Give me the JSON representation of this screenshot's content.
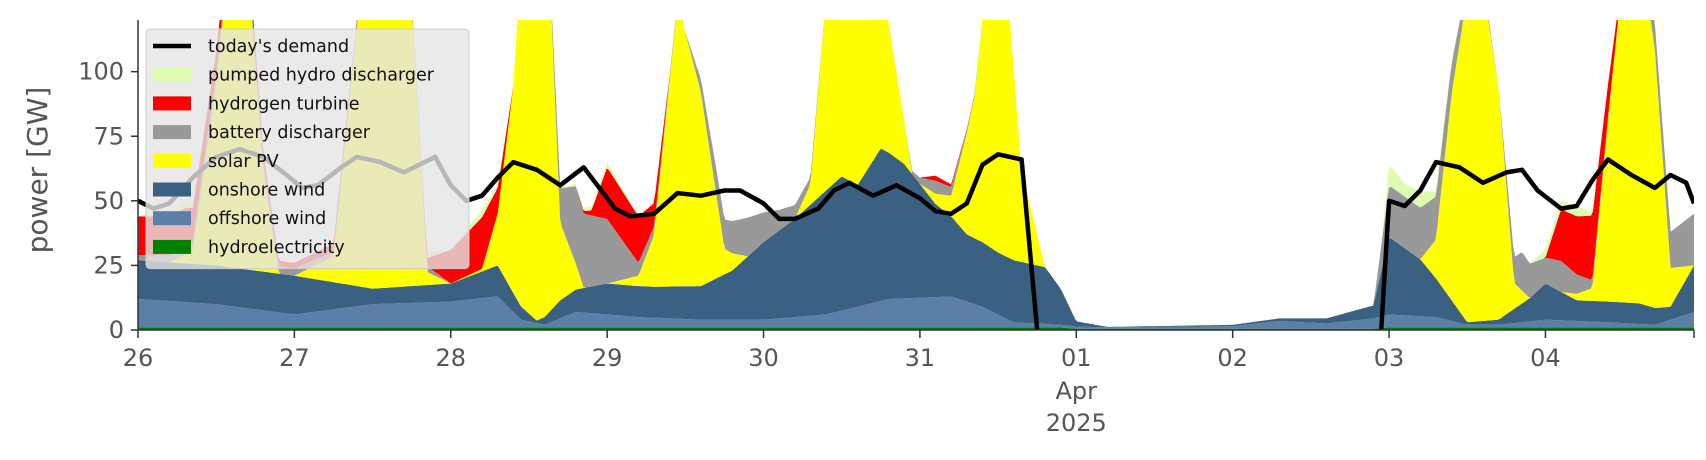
{
  "chart_data": {
    "type": "area",
    "ylabel": "power [GW]",
    "ylim": [
      0,
      120
    ],
    "yticks": [
      0,
      25,
      50,
      75,
      100
    ],
    "xlim": [
      0,
      9.95
    ],
    "xticks": [
      {
        "x": 0,
        "label": "26"
      },
      {
        "x": 1,
        "label": "27"
      },
      {
        "x": 2,
        "label": "28"
      },
      {
        "x": 3,
        "label": "29"
      },
      {
        "x": 4,
        "label": "30"
      },
      {
        "x": 5,
        "label": "31"
      },
      {
        "x": 6,
        "label": "01",
        "sub": [
          "Apr",
          "2025"
        ]
      },
      {
        "x": 7,
        "label": "02"
      },
      {
        "x": 8,
        "label": "03"
      },
      {
        "x": 9,
        "label": "04"
      }
    ],
    "legend_position": "top-left",
    "grid": false,
    "x_unit": "days from 26 Mar 2025",
    "stacked_series": [
      {
        "name": "hydroelectricity",
        "color": "#008000",
        "points": [
          [
            0,
            1
          ],
          [
            5.9,
            1
          ],
          [
            6.0,
            0.5
          ],
          [
            7.9,
            0.5
          ],
          [
            8.0,
            1
          ],
          [
            9.95,
            1
          ]
        ]
      },
      {
        "name": "offshore wind",
        "color": "#5b7fa6",
        "points": [
          [
            0,
            11
          ],
          [
            0.5,
            9
          ],
          [
            1.0,
            5
          ],
          [
            1.5,
            9
          ],
          [
            2.0,
            10
          ],
          [
            2.3,
            12
          ],
          [
            2.45,
            3
          ],
          [
            2.6,
            1
          ],
          [
            2.8,
            6
          ],
          [
            3.2,
            4
          ],
          [
            3.6,
            3
          ],
          [
            4.0,
            3
          ],
          [
            4.4,
            5
          ],
          [
            4.8,
            11
          ],
          [
            5.2,
            12
          ],
          [
            5.4,
            8
          ],
          [
            5.6,
            2
          ],
          [
            5.9,
            1
          ],
          [
            6.2,
            0.5
          ],
          [
            7.0,
            1
          ],
          [
            7.3,
            3
          ],
          [
            7.6,
            2
          ],
          [
            7.9,
            4
          ],
          [
            8.0,
            5
          ],
          [
            8.3,
            4
          ],
          [
            8.5,
            1
          ],
          [
            8.7,
            1
          ],
          [
            9.0,
            3
          ],
          [
            9.4,
            2
          ],
          [
            9.7,
            1
          ],
          [
            9.95,
            6
          ]
        ]
      },
      {
        "name": "onshore wind",
        "color": "#3a6082",
        "points": [
          [
            0,
            15
          ],
          [
            0.5,
            15
          ],
          [
            1.0,
            15
          ],
          [
            1.5,
            6
          ],
          [
            2.0,
            7
          ],
          [
            2.3,
            12
          ],
          [
            2.45,
            5
          ],
          [
            2.55,
            1
          ],
          [
            2.7,
            7
          ],
          [
            3.0,
            12
          ],
          [
            3.3,
            12
          ],
          [
            3.6,
            13
          ],
          [
            3.8,
            19
          ],
          [
            4.0,
            30
          ],
          [
            4.2,
            38
          ],
          [
            4.4,
            48
          ],
          [
            4.5,
            52
          ],
          [
            4.6,
            47
          ],
          [
            4.75,
            59
          ],
          [
            4.9,
            52
          ],
          [
            5.0,
            44
          ],
          [
            5.1,
            36
          ],
          [
            5.3,
            26
          ],
          [
            5.5,
            24
          ],
          [
            5.6,
            24
          ],
          [
            5.8,
            22
          ],
          [
            5.9,
            14
          ],
          [
            6.0,
            2
          ],
          [
            6.2,
            0.2
          ],
          [
            7.0,
            0.5
          ],
          [
            7.3,
            1
          ],
          [
            7.6,
            2
          ],
          [
            7.9,
            5
          ],
          [
            8.0,
            30
          ],
          [
            8.2,
            22
          ],
          [
            8.4,
            8
          ],
          [
            8.5,
            1
          ],
          [
            8.7,
            2
          ],
          [
            8.9,
            9
          ],
          [
            9.0,
            14
          ],
          [
            9.2,
            8
          ],
          [
            9.4,
            8
          ],
          [
            9.6,
            8
          ],
          [
            9.8,
            5
          ],
          [
            9.95,
            18
          ]
        ]
      },
      {
        "name": "solar PV",
        "color": "#ffff00",
        "points": [
          [
            0,
            0
          ],
          [
            0.2,
            0
          ],
          [
            0.35,
            5
          ],
          [
            0.5,
            70
          ],
          [
            0.65,
            160
          ],
          [
            0.8,
            40
          ],
          [
            0.9,
            0
          ],
          [
            1.0,
            0
          ],
          [
            1.25,
            10
          ],
          [
            1.4,
            100
          ],
          [
            1.55,
            190
          ],
          [
            1.7,
            160
          ],
          [
            1.85,
            5
          ],
          [
            2.0,
            0
          ],
          [
            2.2,
            1
          ],
          [
            2.3,
            20
          ],
          [
            2.4,
            80
          ],
          [
            2.5,
            190
          ],
          [
            2.6,
            180
          ],
          [
            2.7,
            30
          ],
          [
            2.85,
            0
          ],
          [
            3.0,
            0
          ],
          [
            3.2,
            4
          ],
          [
            3.3,
            20
          ],
          [
            3.45,
            110
          ],
          [
            3.6,
            75
          ],
          [
            3.75,
            10
          ],
          [
            3.9,
            0
          ],
          [
            4.2,
            0
          ],
          [
            4.3,
            8
          ],
          [
            4.4,
            75
          ],
          [
            4.5,
            135
          ],
          [
            4.65,
            130
          ],
          [
            4.8,
            50
          ],
          [
            4.95,
            0
          ],
          [
            5.0,
            0
          ],
          [
            5.2,
            8
          ],
          [
            5.35,
            55
          ],
          [
            5.5,
            150
          ],
          [
            5.65,
            35
          ],
          [
            5.8,
            0
          ],
          [
            6.0,
            0
          ],
          [
            8.2,
            0
          ],
          [
            8.3,
            15
          ],
          [
            8.4,
            80
          ],
          [
            8.55,
            150
          ],
          [
            8.7,
            90
          ],
          [
            8.8,
            10
          ],
          [
            8.9,
            0
          ],
          [
            9.1,
            0
          ],
          [
            9.3,
            5
          ],
          [
            9.4,
            70
          ],
          [
            9.55,
            160
          ],
          [
            9.7,
            100
          ],
          [
            9.8,
            15
          ],
          [
            9.95,
            0
          ]
        ]
      },
      {
        "name": "battery discharger",
        "color": "#999999",
        "points": [
          [
            0,
            2
          ],
          [
            0.3,
            3
          ],
          [
            0.6,
            5
          ],
          [
            0.9,
            3
          ],
          [
            1.2,
            2
          ],
          [
            1.5,
            2
          ],
          [
            1.8,
            3
          ],
          [
            2.0,
            0
          ],
          [
            2.3,
            0
          ],
          [
            2.5,
            0
          ],
          [
            2.65,
            5
          ],
          [
            2.8,
            30
          ],
          [
            3.0,
            25
          ],
          [
            3.2,
            5
          ],
          [
            3.5,
            0
          ],
          [
            3.7,
            10
          ],
          [
            3.9,
            15
          ],
          [
            4.1,
            8
          ],
          [
            4.4,
            0
          ],
          [
            4.7,
            0
          ],
          [
            4.9,
            0
          ],
          [
            5.1,
            5
          ],
          [
            5.4,
            0
          ],
          [
            6.0,
            0
          ],
          [
            7.9,
            0
          ],
          [
            8.0,
            20
          ],
          [
            8.2,
            20
          ],
          [
            8.35,
            15
          ],
          [
            8.5,
            5
          ],
          [
            8.7,
            0
          ],
          [
            8.85,
            15
          ],
          [
            9.0,
            10
          ],
          [
            9.1,
            12
          ],
          [
            9.3,
            3
          ],
          [
            9.5,
            0
          ],
          [
            9.7,
            10
          ],
          [
            9.95,
            20
          ]
        ]
      },
      {
        "name": "hydrogen turbine",
        "color": "#ff0000",
        "points": [
          [
            0,
            15
          ],
          [
            0.3,
            15
          ],
          [
            0.6,
            5
          ],
          [
            0.9,
            2
          ],
          [
            1.2,
            3
          ],
          [
            1.5,
            0
          ],
          [
            1.8,
            0
          ],
          [
            2.0,
            13
          ],
          [
            2.2,
            20
          ],
          [
            2.4,
            0
          ],
          [
            2.8,
            0
          ],
          [
            2.9,
            2
          ],
          [
            3.0,
            20
          ],
          [
            3.2,
            18
          ],
          [
            3.4,
            0
          ],
          [
            5.0,
            0
          ],
          [
            5.1,
            2
          ],
          [
            5.3,
            0
          ],
          [
            8.8,
            0
          ],
          [
            9.0,
            0
          ],
          [
            9.1,
            20
          ],
          [
            9.3,
            25
          ],
          [
            9.5,
            0
          ],
          [
            9.95,
            0
          ]
        ]
      },
      {
        "name": "pumped hydro discharger",
        "color": "#ddfcb0",
        "points": [
          [
            0,
            0
          ],
          [
            0.3,
            2
          ],
          [
            0.6,
            0
          ],
          [
            1.5,
            0
          ],
          [
            1.8,
            3
          ],
          [
            2.0,
            0
          ],
          [
            2.2,
            3
          ],
          [
            2.35,
            0
          ],
          [
            2.7,
            0
          ],
          [
            2.8,
            1
          ],
          [
            3.0,
            2
          ],
          [
            3.2,
            0
          ],
          [
            7.95,
            0
          ],
          [
            8.0,
            8
          ],
          [
            8.1,
            5
          ],
          [
            8.2,
            6
          ],
          [
            8.3,
            2
          ],
          [
            8.5,
            0
          ],
          [
            8.9,
            0
          ],
          [
            9.0,
            3
          ],
          [
            9.2,
            4
          ],
          [
            9.35,
            0
          ],
          [
            9.95,
            0
          ]
        ]
      }
    ],
    "line_series": {
      "name": "today's demand",
      "color": "#000000",
      "segments": [
        [
          [
            0,
            50
          ],
          [
            0.1,
            47
          ],
          [
            0.2,
            49
          ],
          [
            0.35,
            59
          ],
          [
            0.5,
            67
          ],
          [
            0.65,
            70
          ],
          [
            0.8,
            67
          ],
          [
            0.95,
            60
          ],
          [
            1.05,
            55
          ],
          [
            1.15,
            56
          ],
          [
            1.3,
            63
          ],
          [
            1.4,
            67
          ],
          [
            1.55,
            65
          ],
          [
            1.7,
            61
          ],
          [
            1.8,
            64
          ],
          [
            1.9,
            67
          ],
          [
            2.0,
            56
          ],
          [
            2.1,
            50
          ],
          [
            2.2,
            52
          ],
          [
            2.3,
            59
          ],
          [
            2.4,
            65
          ],
          [
            2.55,
            62
          ],
          [
            2.7,
            56
          ],
          [
            2.85,
            63
          ],
          [
            2.95,
            55
          ],
          [
            3.05,
            47
          ],
          [
            3.15,
            44
          ],
          [
            3.3,
            45
          ],
          [
            3.45,
            53
          ],
          [
            3.6,
            52
          ],
          [
            3.75,
            54
          ],
          [
            3.85,
            54
          ],
          [
            4.0,
            49
          ],
          [
            4.1,
            43
          ],
          [
            4.2,
            43
          ],
          [
            4.35,
            47
          ],
          [
            4.45,
            54
          ],
          [
            4.55,
            57
          ],
          [
            4.7,
            52
          ],
          [
            4.85,
            56
          ],
          [
            5.0,
            51
          ],
          [
            5.1,
            46
          ],
          [
            5.2,
            45
          ],
          [
            5.3,
            49
          ],
          [
            5.4,
            64
          ],
          [
            5.5,
            68
          ],
          [
            5.65,
            66
          ],
          [
            5.75,
            0
          ]
        ],
        [
          [
            7.95,
            0
          ],
          [
            8.0,
            50
          ],
          [
            8.1,
            48
          ],
          [
            8.2,
            54
          ],
          [
            8.3,
            65
          ],
          [
            8.45,
            63
          ],
          [
            8.6,
            57
          ],
          [
            8.75,
            61
          ],
          [
            8.85,
            62
          ],
          [
            8.95,
            54
          ],
          [
            9.1,
            47
          ],
          [
            9.2,
            48
          ],
          [
            9.3,
            58
          ],
          [
            9.4,
            66
          ],
          [
            9.55,
            60
          ],
          [
            9.7,
            55
          ],
          [
            9.8,
            60
          ],
          [
            9.9,
            57
          ],
          [
            9.95,
            49
          ]
        ]
      ]
    },
    "legend": [
      {
        "label": "today's demand",
        "kind": "line",
        "color": "#000000"
      },
      {
        "label": "pumped hydro discharger",
        "kind": "patch",
        "color": "#ddfcb0"
      },
      {
        "label": "hydrogen turbine",
        "kind": "patch",
        "color": "#ff0000"
      },
      {
        "label": "battery discharger",
        "kind": "patch",
        "color": "#999999"
      },
      {
        "label": "solar PV",
        "kind": "patch",
        "color": "#ffff00"
      },
      {
        "label": "onshore wind",
        "kind": "patch",
        "color": "#3a6082"
      },
      {
        "label": "offshore wind",
        "kind": "patch",
        "color": "#5b7fa6"
      },
      {
        "label": "hydroelectricity",
        "kind": "patch",
        "color": "#008000"
      }
    ]
  }
}
